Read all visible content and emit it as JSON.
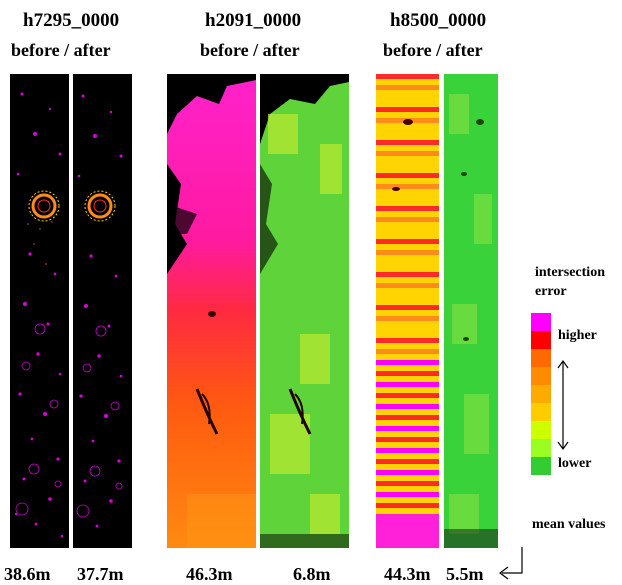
{
  "panels": [
    {
      "id": "h7295_0000",
      "subtitle": "before / after",
      "values": [
        "38.6m",
        "37.7m"
      ]
    },
    {
      "id": "h2091_0000",
      "subtitle": "before / after",
      "values": [
        "46.3m",
        "6.8m"
      ]
    },
    {
      "id": "h8500_0000",
      "subtitle": "before / after",
      "values": [
        "44.3m",
        "5.5m"
      ]
    }
  ],
  "legend": {
    "title_line1": "intersection",
    "title_line2": "error",
    "higher": "higher",
    "lower": "lower",
    "mean_values": "mean values",
    "colors": [
      "#ff00ff",
      "#ff0000",
      "#ff6a00",
      "#ff8c00",
      "#ffaa00",
      "#ffcc00",
      "#ccff00",
      "#99ff22",
      "#33cc33"
    ]
  },
  "colors": {
    "magenta": "#ff00ff",
    "red": "#ff2a2a",
    "orange": "#ff8c1a",
    "yellow": "#ffd400",
    "lime": "#a6e832",
    "green": "#3ad23a",
    "black": "#000000"
  }
}
